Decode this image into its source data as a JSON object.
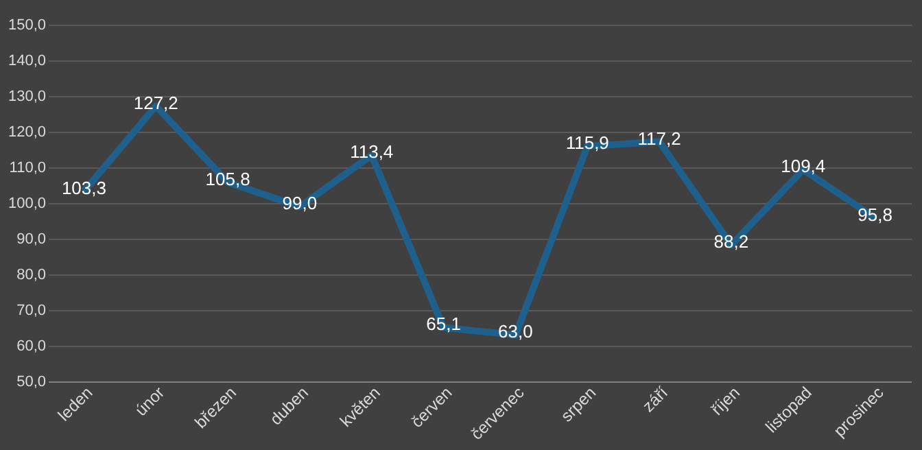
{
  "chart_data": {
    "type": "line",
    "categories": [
      "leden",
      "únor",
      "březen",
      "duben",
      "květen",
      "červen",
      "červenec",
      "srpen",
      "září",
      "říjen",
      "listopad",
      "prosinec"
    ],
    "series": [
      {
        "color": "#1f5f8b",
        "values": [
          103.3,
          127.2,
          105.8,
          99.0,
          113.4,
          65.1,
          63.0,
          115.9,
          117.2,
          88.2,
          109.4,
          95.8
        ],
        "value_labels": [
          "103,3",
          "127,2",
          "105,8",
          "99,0",
          "113,4",
          "65,1",
          "63,0",
          "115,9",
          "117,2",
          "88,2",
          "109,4",
          "95,8"
        ]
      }
    ],
    "ylim": [
      50,
      150
    ],
    "yticks": [
      {
        "value": 50,
        "label": "50,0"
      },
      {
        "value": 60,
        "label": "60,0"
      },
      {
        "value": 70,
        "label": "70,0"
      },
      {
        "value": 80,
        "label": "80,0"
      },
      {
        "value": 90,
        "label": "90,0"
      },
      {
        "value": 100,
        "label": "100,0"
      },
      {
        "value": 110,
        "label": "110,0"
      },
      {
        "value": 120,
        "label": "120,0"
      },
      {
        "value": 130,
        "label": "130,0"
      },
      {
        "value": 140,
        "label": "140,0"
      },
      {
        "value": 150,
        "label": "150,0"
      }
    ],
    "grid": "y",
    "marker": "none",
    "line_style": "solid"
  }
}
